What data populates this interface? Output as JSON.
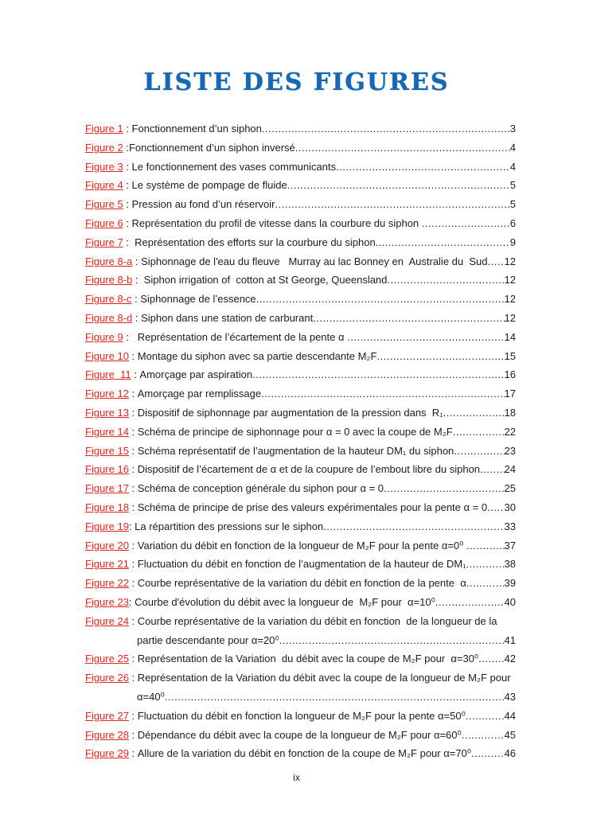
{
  "page": {
    "title": "LISTE DES FIGURES",
    "footer": "ix"
  },
  "colors": {
    "title_blue": "#1768b3",
    "figure_link_red": "#e8251d",
    "body_text": "#1c1c1c"
  },
  "leader": "................................................................................................................................................................",
  "entries": [
    {
      "label": "Figure 1",
      "sep": " : ",
      "text": "Fonctionnement d’un siphon",
      "page": "3"
    },
    {
      "label": "Figure 2",
      "sep": " :",
      "text": "Fonctionnement d’un siphon inversé",
      "page": "4"
    },
    {
      "label": "Figure 3",
      "sep": " : ",
      "text": "Le fonctionnement des vases communicants",
      "page": "4"
    },
    {
      "label": "Figure 4",
      "sep": " : ",
      "text": "Le système de pompage de fluide",
      "page": "5"
    },
    {
      "label": "Figure 5",
      "sep": " : ",
      "text": "Pression au fond d’un réservoir",
      "page": "5"
    },
    {
      "label": "Figure 6",
      "sep": " : ",
      "text": "Représentation du profil de vitesse dans la courbure du siphon ",
      "page": "6"
    },
    {
      "label": "Figure 7",
      "sep": " :  ",
      "text": "Représentation des efforts sur la courbure du siphon.",
      "page": "9"
    },
    {
      "label": "Figure 8-a",
      "sep": " : ",
      "text": "Siphonnage de l'eau du fleuve   Murray au lac Bonney en  Australie du  Sud",
      "page": "12"
    },
    {
      "label": "Figure 8-b",
      "sep": " :  ",
      "text": "Siphon irrigation of  cotton at St George, Queensland",
      "page": "12"
    },
    {
      "label": "Figure 8-c",
      "sep": " : ",
      "text": "Siphonnage de l’essence",
      "page": "12"
    },
    {
      "label": "Figure 8-d",
      "sep": " : ",
      "text": "Siphon dans une station de carburant",
      "page": "12"
    },
    {
      "label": "Figure 9",
      "sep": " :   ",
      "text": "Représentation de l’écartement de la pente α ",
      "page": "14"
    },
    {
      "label": "Figure 10",
      "sep": " : ",
      "text": "Montage du siphon avec sa partie descendante M₂F",
      "page": "15"
    },
    {
      "label": "Figure  11",
      "sep": " : ",
      "text": "Amorçage par aspiration",
      "page": "16"
    },
    {
      "label": "Figure 12",
      "sep": " : ",
      "text": "Amorçage par remplissage",
      "page": "17"
    },
    {
      "label": "Figure 13",
      "sep": " : ",
      "text": "Dispositif de siphonnage par augmentation de la pression dans  R₁",
      "page": "18"
    },
    {
      "label": "Figure 14",
      "sep": " : ",
      "text": "Schéma de principe de siphonnage pour α = 0 avec la coupe de M₂F",
      "page": "22"
    },
    {
      "label": "Figure 15",
      "sep": " : ",
      "text": "Schéma représentatif de l’augmentation de la hauteur DM₁ du siphon",
      "page": "23"
    },
    {
      "label": "Figure 16",
      "sep": " : ",
      "text": "Dispositif de l’écartement de α et de la coupure de l’embout libre du siphon",
      "page": "24"
    },
    {
      "label": "Figure 17",
      "sep": " : ",
      "text": "Schéma de conception générale du siphon pour α = 0",
      "page": "25"
    },
    {
      "label": "Figure 18",
      "sep": " : ",
      "text": "Schéma de principe de prise des valeurs expérimentales pour la pente α = 0",
      "page": "30"
    },
    {
      "label": "Figure 19",
      "sep": ": ",
      "text": "La répartition des pressions sur le siphon",
      "page": "33"
    },
    {
      "label": "Figure 20",
      "sep": " : ",
      "text": "Variation du débit en fonction de la longueur de M₂F pour la pente α=0⁰ ",
      "page": "37"
    },
    {
      "label": "Figure 21",
      "sep": " : ",
      "text": "Fluctuation du débit en fonction de l’augmentation de la hauteur de DM₁",
      "page": "38"
    },
    {
      "label": "Figure 22",
      "sep": " : ",
      "text": "Courbe représentative de la variation du débit en fonction de la pente  α",
      "page": "39"
    },
    {
      "label": "Figure 23",
      "sep": ": ",
      "text": "Courbe d'évolution du débit avec la longueur de  M₂F pour  α=10⁰",
      "page": "40"
    },
    {
      "label": "Figure 24",
      "sep": " : ",
      "text": "Courbe représentative de la variation du débit en fonction  de la longueur de la",
      "text2": "partie descendante pour α=20⁰",
      "page": "41"
    },
    {
      "label": "Figure 25",
      "sep": " : ",
      "text": "Représentation de la Variation  du débit avec la coupe de M₂F pour  α=30⁰",
      "page": "42"
    },
    {
      "label": "Figure 26",
      "sep": " : ",
      "text": "Représentation de la Variation du débit avec la coupe de la longueur de M₂F pour",
      "text2": "α=40⁰",
      "page": "43"
    },
    {
      "label": "Figure 27",
      "sep": " : ",
      "text": "Fluctuation du débit en fonction la longueur de M₂F pour la pente α=50⁰",
      "page": "44"
    },
    {
      "label": "Figure 28",
      "sep": " : ",
      "text": "Dépendance du débit avec la coupe de la longueur de M₂F pour α=60⁰",
      "page": "45"
    },
    {
      "label": "Figure 29",
      "sep": " : ",
      "text": "Allure de la variation du débit en fonction de la coupe de M₂F pour α=70⁰",
      "page": "46"
    }
  ]
}
